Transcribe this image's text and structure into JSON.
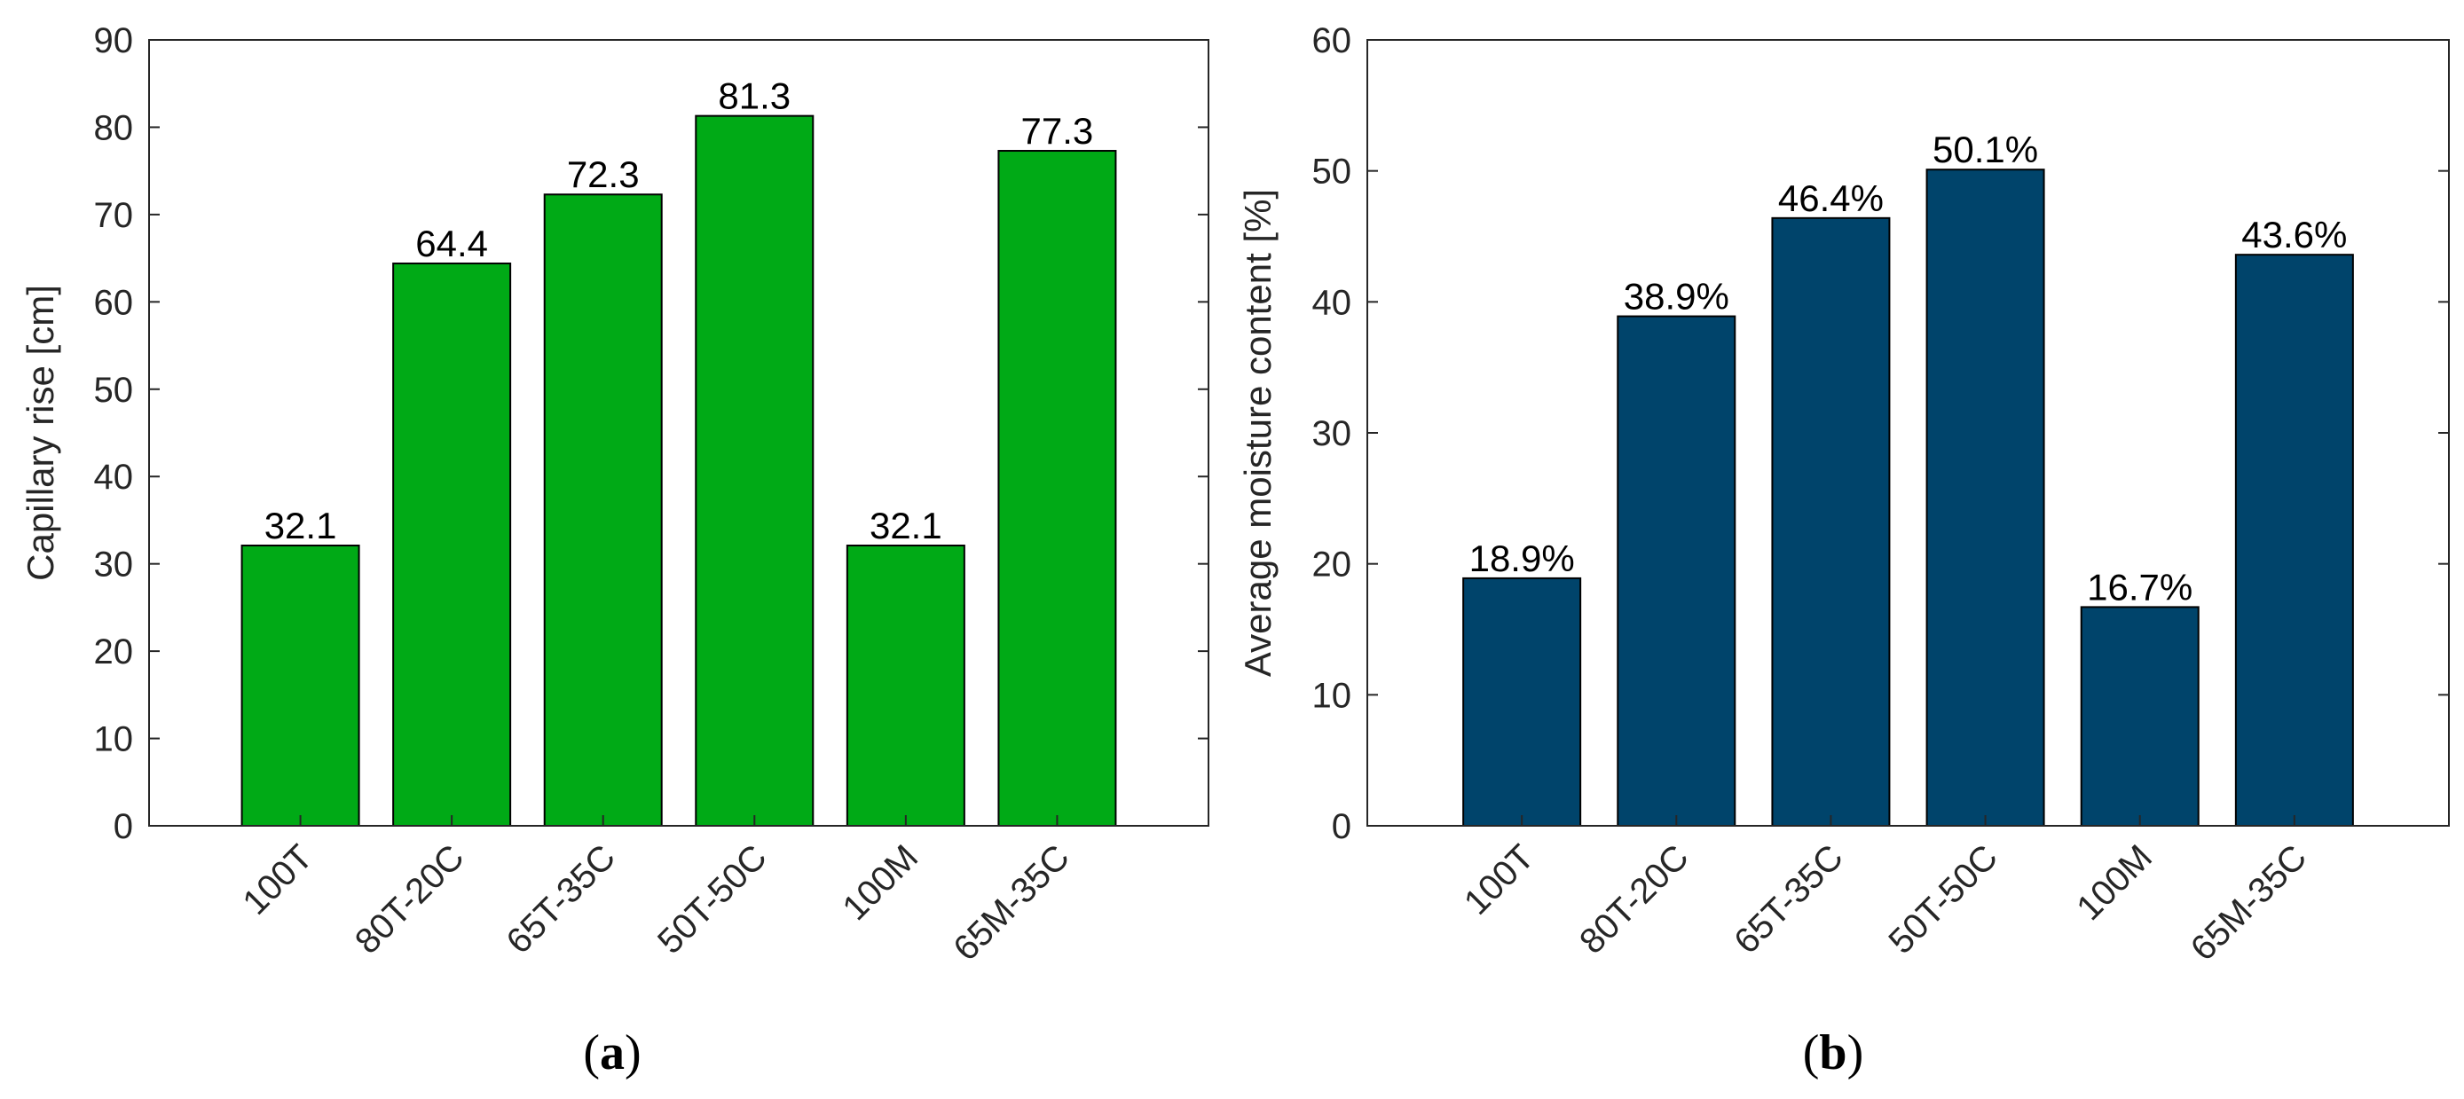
{
  "chart_data": [
    {
      "type": "bar",
      "panel_label": "(a)",
      "panel_letter": "a",
      "categories": [
        "100T",
        "80T-20C",
        "65T-35C",
        "50T-50C",
        "100M",
        "65M-35C"
      ],
      "values": [
        32.1,
        64.4,
        72.3,
        81.3,
        32.1,
        77.3
      ],
      "data_labels": [
        "32.1",
        "64.4",
        "72.3",
        "81.3",
        "32.1",
        "77.3"
      ],
      "ylabel": "Capillary rise [cm]",
      "ylim": [
        0,
        90
      ],
      "yticks": [
        0,
        10,
        20,
        30,
        40,
        50,
        60,
        70,
        80,
        90
      ],
      "bar_color": "#00aa16",
      "grid": false,
      "legend": "none"
    },
    {
      "type": "bar",
      "panel_label": "(b)",
      "panel_letter": "b",
      "categories": [
        "100T",
        "80T-20C",
        "65T-35C",
        "50T-50C",
        "100M",
        "65M-35C"
      ],
      "values": [
        18.9,
        38.9,
        46.4,
        50.1,
        16.7,
        43.6
      ],
      "data_labels": [
        "18.9%",
        "38.9%",
        "46.4%",
        "50.1%",
        "16.7%",
        "43.6%"
      ],
      "ylabel": "Average moisture content [%]",
      "ylim": [
        0,
        60
      ],
      "yticks": [
        0,
        10,
        20,
        30,
        40,
        50,
        60
      ],
      "bar_color": "#00446b",
      "grid": false,
      "legend": "none"
    }
  ]
}
